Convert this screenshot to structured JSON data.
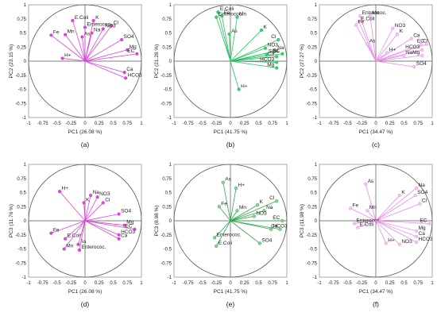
{
  "figure": {
    "panels": [
      "(a)",
      "(b)",
      "(c)",
      "(d)",
      "(e)",
      "(f)"
    ]
  },
  "chart_data": [
    {
      "type": "scatter",
      "panel": "(a)",
      "xlabel": "PC1 (26.08 %)",
      "ylabel": "PC2 (23.15 %)",
      "xlim": [
        -1,
        1
      ],
      "ylim": [
        -1,
        1
      ],
      "xticks": [
        "-1",
        "-0.75",
        "-0.5",
        "-0.25",
        "0",
        "0.25",
        "0.5",
        "0.75",
        "1"
      ],
      "yticks": [
        "1",
        "0.75",
        "0.5",
        "0.25",
        "0",
        "-0.25",
        "-0.5",
        "-0.75",
        "-1"
      ],
      "color": "#d946d9",
      "fill": "#d946d9",
      "points": [
        {
          "label": "E.Coli",
          "x": -0.22,
          "y": 0.72
        },
        {
          "label": "K",
          "x": 0.15,
          "y": 0.72
        },
        {
          "label": "Cl",
          "x": 0.47,
          "y": 0.63
        },
        {
          "label": "NO3",
          "x": 0.32,
          "y": 0.57
        },
        {
          "label": "Enterococ.",
          "x": 0.0,
          "y": 0.6
        },
        {
          "label": "Fe",
          "x": -0.6,
          "y": 0.46
        },
        {
          "label": "Mn",
          "x": -0.35,
          "y": 0.47
        },
        {
          "label": "Na",
          "x": 0.12,
          "y": 0.5
        },
        {
          "label": "As",
          "x": -0.05,
          "y": 0.43
        },
        {
          "label": "SO4",
          "x": 0.65,
          "y": 0.38
        },
        {
          "label": "Mg",
          "x": 0.75,
          "y": 0.2
        },
        {
          "label": "EC",
          "x": 0.92,
          "y": 0.13
        },
        {
          "label": "H+",
          "x": -0.4,
          "y": 0.05
        },
        {
          "label": "Ca",
          "x": 0.7,
          "y": -0.2
        },
        {
          "label": "HCO3",
          "x": 0.72,
          "y": -0.3
        }
      ]
    },
    {
      "type": "scatter",
      "panel": "(b)",
      "xlabel": "PC1 (41.75 %)",
      "ylabel": "PC2 (21.28 %)",
      "xlim": [
        -1,
        1
      ],
      "ylim": [
        -1,
        1
      ],
      "xticks": [
        "-1",
        "-0.75",
        "-0.5",
        "-0.25",
        "0",
        "0.25",
        "0.5",
        "0.75",
        "1"
      ],
      "yticks": [
        "1",
        "0.75",
        "0.5",
        "0.25",
        "0",
        "-0.25",
        "-0.5",
        "-0.75",
        "-1"
      ],
      "color": "#22c55e",
      "fill": "#34d36b",
      "points": [
        {
          "label": "E.Coli",
          "x": -0.22,
          "y": 0.87
        },
        {
          "label": "Fe",
          "x": -0.15,
          "y": 0.8
        },
        {
          "label": "Enterococ.",
          "x": -0.25,
          "y": 0.78
        },
        {
          "label": "Mn",
          "x": 0.12,
          "y": 0.78
        },
        {
          "label": "K",
          "x": 0.55,
          "y": 0.55
        },
        {
          "label": "As",
          "x": -0.02,
          "y": 0.48
        },
        {
          "label": "Cl",
          "x": 0.85,
          "y": 0.38
        },
        {
          "label": "NO3",
          "x": 0.62,
          "y": 0.23
        },
        {
          "label": "Na",
          "x": 0.8,
          "y": 0.18
        },
        {
          "label": "SO4",
          "x": 0.64,
          "y": 0.12
        },
        {
          "label": "EC",
          "x": 0.92,
          "y": 0.13
        },
        {
          "label": "Ca",
          "x": 0.82,
          "y": 0.08
        },
        {
          "label": "HCO3",
          "x": 0.82,
          "y": -0.02
        },
        {
          "label": "Mg",
          "x": 0.82,
          "y": -0.12
        },
        {
          "label": "H+",
          "x": 0.15,
          "y": -0.5
        }
      ]
    },
    {
      "type": "scatter",
      "panel": "(c)",
      "xlabel": "PC1 (34.47 %)",
      "ylabel": "PC2 (27.27 %)",
      "xlim": [
        -1,
        1
      ],
      "ylim": [
        -1,
        1
      ],
      "xticks": [
        "-1",
        "-0.75",
        "-0.5",
        "-0.25",
        "0",
        "0.25",
        "0.5",
        "0.75",
        "1"
      ],
      "yticks": [
        "1",
        "0.75",
        "0.5",
        "0.25",
        "0",
        "-0.25",
        "-0.5",
        "-0.75",
        "-1"
      ],
      "color": "#e88ee8",
      "fill": "#f3c6f3",
      "points": [
        {
          "label": "Enterococ.",
          "x": -0.28,
          "y": 0.8
        },
        {
          "label": "Mn",
          "x": -0.1,
          "y": 0.8
        },
        {
          "label": "E.Coli",
          "x": -0.3,
          "y": 0.7
        },
        {
          "label": "Fe",
          "x": -0.35,
          "y": 0.64
        },
        {
          "label": "NO3",
          "x": 0.3,
          "y": 0.58
        },
        {
          "label": "K",
          "x": 0.38,
          "y": 0.48
        },
        {
          "label": "Ca",
          "x": 0.63,
          "y": 0.4
        },
        {
          "label": "As",
          "x": -0.15,
          "y": 0.3
        },
        {
          "label": "Cl",
          "x": 0.8,
          "y": 0.3
        },
        {
          "label": "EC",
          "x": 0.9,
          "y": 0.3
        },
        {
          "label": "HCO3",
          "x": 0.82,
          "y": 0.2
        },
        {
          "label": "H+",
          "x": 0.2,
          "y": 0.15
        },
        {
          "label": "Na",
          "x": 0.5,
          "y": 0.1
        },
        {
          "label": "Mg",
          "x": 0.82,
          "y": 0.1
        },
        {
          "label": "SO4",
          "x": 0.68,
          "y": -0.1
        }
      ]
    },
    {
      "type": "scatter",
      "panel": "(d)",
      "xlabel": "PC1 (26.08 %)",
      "ylabel": "PC3 (11.76 %)",
      "xlim": [
        -1,
        1
      ],
      "ylim": [
        -1,
        1
      ],
      "xticks": [
        "-1",
        "-0.75",
        "-0.5",
        "-0.25",
        "0",
        "0.25",
        "0.5",
        "0.75",
        "1"
      ],
      "yticks": [
        "1",
        "0.75",
        "0.5",
        "0.25",
        "0",
        "-0.25",
        "-0.5",
        "-0.75",
        "-1"
      ],
      "color": "#d946d9",
      "fill": "#d946d9",
      "points": [
        {
          "label": "H+",
          "x": -0.45,
          "y": 0.52
        },
        {
          "label": "Na",
          "x": 0.1,
          "y": 0.45
        },
        {
          "label": "NO3",
          "x": 0.22,
          "y": 0.42
        },
        {
          "label": "Cl",
          "x": 0.32,
          "y": 0.32
        },
        {
          "label": "K",
          "x": -0.02,
          "y": 0.32
        },
        {
          "label": "SO4",
          "x": 0.6,
          "y": 0.12
        },
        {
          "label": "Mg",
          "x": 0.7,
          "y": -0.08
        },
        {
          "label": "EC",
          "x": 0.88,
          "y": -0.15
        },
        {
          "label": "Fe",
          "x": -0.6,
          "y": -0.22
        },
        {
          "label": "HCO3",
          "x": 0.6,
          "y": -0.25
        },
        {
          "label": "E.Coli",
          "x": -0.35,
          "y": -0.32
        },
        {
          "label": "Ca",
          "x": 0.6,
          "y": -0.32
        },
        {
          "label": "As",
          "x": -0.12,
          "y": -0.42
        },
        {
          "label": "Mn",
          "x": -0.37,
          "y": -0.5
        },
        {
          "label": "Enterococ.",
          "x": -0.1,
          "y": -0.52
        }
      ]
    },
    {
      "type": "scatter",
      "panel": "(e)",
      "xlabel": "PC1 (41.75 %)",
      "ylabel": "PC3 (8.98 %)",
      "xlim": [
        -1,
        1
      ],
      "ylim": [
        -1,
        1
      ],
      "xticks": [
        "-1",
        "-0.75",
        "-0.5",
        "-0.25",
        "0",
        "0.25",
        "0.5",
        "0.75",
        "1"
      ],
      "yticks": [
        "1",
        "0.75",
        "0.5",
        "0.25",
        "0",
        "-0.25",
        "-0.5",
        "-0.75",
        "-1"
      ],
      "color": "#2fa84f",
      "fill": "#8fd48f",
      "points": [
        {
          "label": "As",
          "x": -0.13,
          "y": 0.68
        },
        {
          "label": "H+",
          "x": 0.1,
          "y": 0.58
        },
        {
          "label": "Cl",
          "x": 0.82,
          "y": 0.35
        },
        {
          "label": "K",
          "x": 0.48,
          "y": 0.28
        },
        {
          "label": "Fe",
          "x": -0.2,
          "y": 0.25
        },
        {
          "label": "Mn",
          "x": 0.12,
          "y": 0.18
        },
        {
          "label": "Na",
          "x": 0.6,
          "y": 0.18
        },
        {
          "label": "NO3",
          "x": 0.42,
          "y": 0.08
        },
        {
          "label": "EC",
          "x": 0.92,
          "y": 0.0
        },
        {
          "label": "HCO3",
          "x": 0.72,
          "y": -0.15
        },
        {
          "label": "Ca",
          "x": 0.88,
          "y": -0.15
        },
        {
          "label": "Enterococ.",
          "x": -0.28,
          "y": -0.3
        },
        {
          "label": "SO4",
          "x": 0.52,
          "y": -0.4
        },
        {
          "label": "E.Coli",
          "x": -0.25,
          "y": -0.45
        }
      ]
    },
    {
      "type": "scatter",
      "panel": "(f)",
      "xlabel": "PC1 (34.47 %)",
      "ylabel": "PC3 (11.98 %)",
      "xlim": [
        -1,
        1
      ],
      "ylim": [
        -1,
        1
      ],
      "xticks": [
        "-1",
        "-0.75",
        "-0.5",
        "-0.25",
        "0",
        "0.25",
        "0.5",
        "0.75",
        "1"
      ],
      "yticks": [
        "1",
        "0.75",
        "0.5",
        "0.25",
        "0",
        "-0.25",
        "-0.5",
        "-0.75",
        "-1"
      ],
      "color": "#e88ee8",
      "fill": "#f3c6f3",
      "points": [
        {
          "label": "As",
          "x": -0.18,
          "y": 0.65
        },
        {
          "label": "Na",
          "x": 0.72,
          "y": 0.58
        },
        {
          "label": "SO4",
          "x": 0.7,
          "y": 0.45
        },
        {
          "label": "K",
          "x": 0.42,
          "y": 0.45
        },
        {
          "label": "Cl",
          "x": 0.78,
          "y": 0.3
        },
        {
          "label": "Fe",
          "x": -0.45,
          "y": 0.22
        },
        {
          "label": "Mn",
          "x": -0.15,
          "y": 0.18
        },
        {
          "label": "Enterococ.",
          "x": -0.38,
          "y": -0.05
        },
        {
          "label": "E.Coli",
          "x": -0.32,
          "y": -0.12
        },
        {
          "label": "EC",
          "x": 0.95,
          "y": -0.05
        },
        {
          "label": "Mg",
          "x": 0.72,
          "y": -0.18
        },
        {
          "label": "Ca",
          "x": 0.72,
          "y": -0.28
        },
        {
          "label": "H+",
          "x": 0.18,
          "y": -0.4
        },
        {
          "label": "NO3",
          "x": 0.42,
          "y": -0.42
        },
        {
          "label": "HCO3",
          "x": 0.72,
          "y": -0.38
        }
      ]
    }
  ]
}
